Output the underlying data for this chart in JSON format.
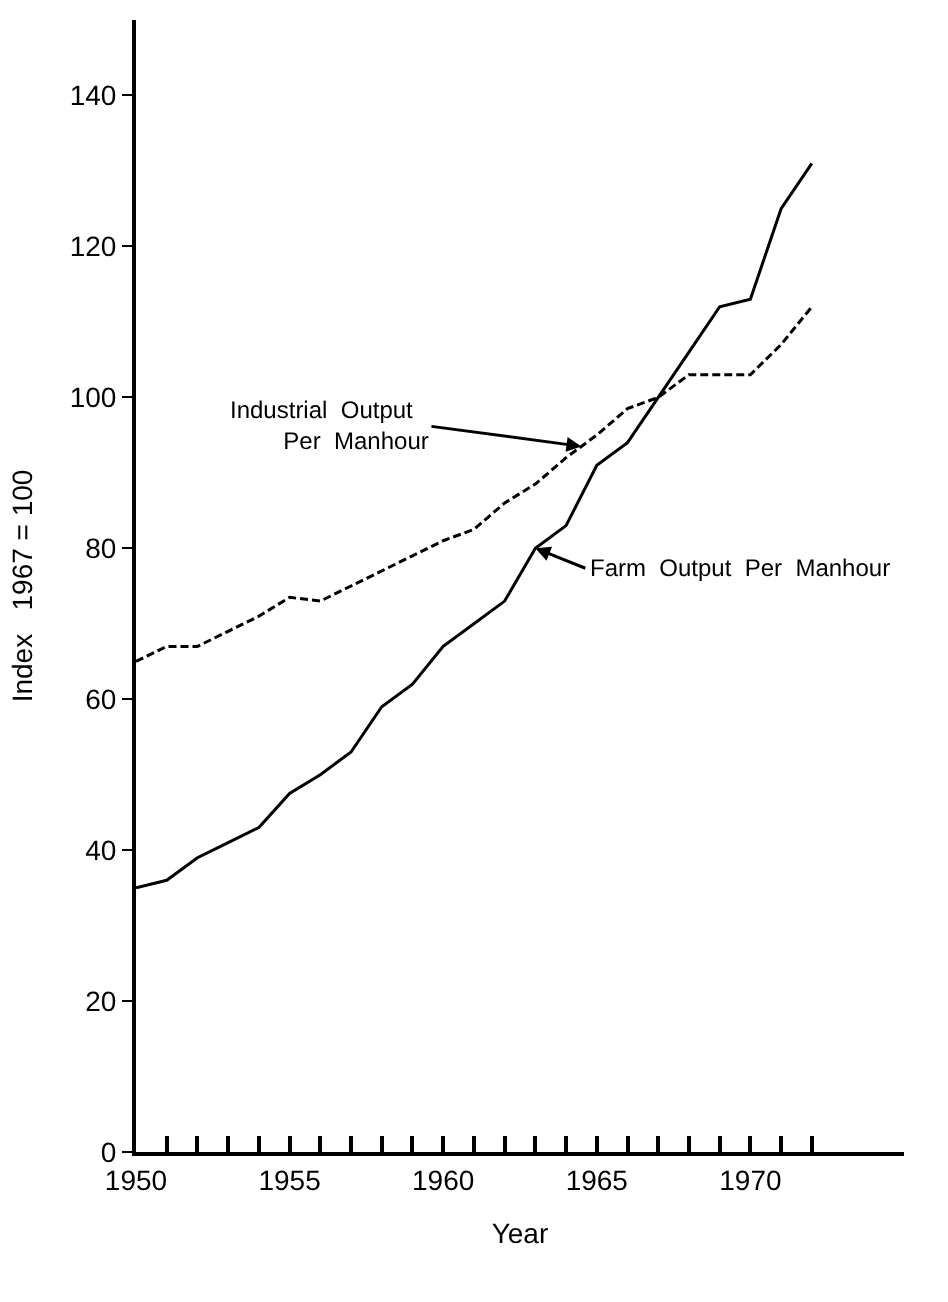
{
  "chart_data": {
    "type": "line",
    "xlabel": "Year",
    "ylabel": "Index   1967 = 100",
    "x": [
      1950,
      1951,
      1952,
      1953,
      1954,
      1955,
      1956,
      1957,
      1958,
      1959,
      1960,
      1961,
      1962,
      1963,
      1964,
      1965,
      1966,
      1967,
      1968,
      1969,
      1970,
      1971,
      1972
    ],
    "series": [
      {
        "color": "#000000",
        "line_style": "solid",
        "values": [
          35,
          36,
          39,
          41,
          43,
          47.5,
          50,
          53,
          59,
          62,
          67,
          70,
          73,
          80,
          83,
          91,
          94,
          100,
          106,
          112,
          113,
          125,
          131
        ]
      },
      {
        "color": "#000000",
        "line_style": "dashed",
        "values": [
          65,
          67,
          67,
          69,
          71,
          73.5,
          73,
          75,
          77,
          79,
          81,
          82.5,
          86,
          88.5,
          92,
          95,
          98.5,
          100,
          103,
          103,
          103,
          107,
          112
        ]
      }
    ],
    "annotations": [
      {
        "text": "Industrial  Output\n        Per  Manhour",
        "x": 1964.5,
        "y": 93.5
      },
      {
        "text": "Farm  Output  Per  Manhour",
        "x": 1963,
        "y": 80
      }
    ],
    "xlim": [
      1950,
      1975
    ],
    "ylim": [
      0,
      150
    ],
    "xticks": [
      1950,
      {
        "value": 1951,
        "label": null
      },
      {
        "value": 1952,
        "label": null
      },
      {
        "value": 1953,
        "label": null
      },
      {
        "value": 1954,
        "label": null
      },
      1955,
      {
        "value": 1956,
        "label": null
      },
      {
        "value": 1957,
        "label": null
      },
      {
        "value": 1958,
        "label": null
      },
      {
        "value": 1959,
        "label": null
      },
      1960,
      {
        "value": 1961,
        "label": null
      },
      {
        "value": 1962,
        "label": null
      },
      {
        "value": 1963,
        "label": null
      },
      {
        "value": 1964,
        "label": null
      },
      1965,
      {
        "value": 1966,
        "label": null
      },
      {
        "value": 1967,
        "label": null
      },
      {
        "value": 1968,
        "label": null
      },
      {
        "value": 1969,
        "label": null
      },
      1970,
      {
        "value": 1971,
        "label": null
      },
      {
        "value": 1972,
        "label": null
      }
    ],
    "yticks": [
      0,
      20,
      40,
      60,
      80,
      100,
      120,
      140
    ],
    "marker": "none"
  }
}
